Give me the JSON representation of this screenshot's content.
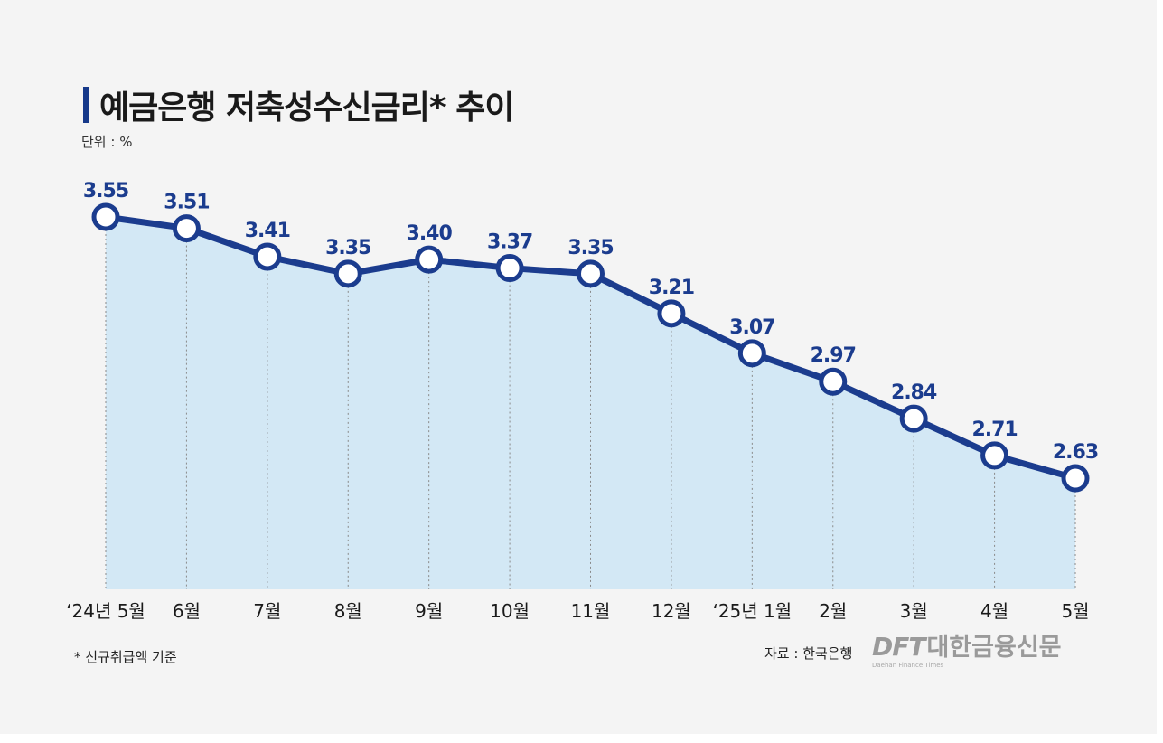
{
  "title": "예금은행 저축성수신금리* 추이",
  "unit": "단위 : %",
  "footnote": "* 신규취급액 기준",
  "source": "자료 : 한국은행",
  "logo": {
    "mark": "DFT",
    "name": "대한금융신문",
    "sub": "Daehan Finance Times"
  },
  "colors": {
    "line": "#1b3c8e",
    "area": "#d3e8f5",
    "marker_fill": "#ffffff",
    "title_accent": "#16398a"
  },
  "chart_data": {
    "type": "line",
    "title": "예금은행 저축성수신금리* 추이",
    "xlabel": "",
    "ylabel": "",
    "categories": [
      "‘24년 5월",
      "6월",
      "7월",
      "8월",
      "9월",
      "10월",
      "11월",
      "12월",
      "‘25년 1월",
      "2월",
      "3월",
      "4월",
      "5월"
    ],
    "series": [
      {
        "values": [
          3.55,
          3.51,
          3.41,
          3.35,
          3.4,
          3.37,
          3.35,
          3.21,
          3.07,
          2.97,
          2.84,
          2.71,
          2.63
        ],
        "labels": [
          "3.55",
          "3.51",
          "3.41",
          "3.35",
          "3.40",
          "3.37",
          "3.35",
          "3.21",
          "3.07",
          "2.97",
          "2.84",
          "2.71",
          "2.63"
        ]
      }
    ],
    "area_fill": true,
    "grid": false,
    "legend": "none"
  }
}
